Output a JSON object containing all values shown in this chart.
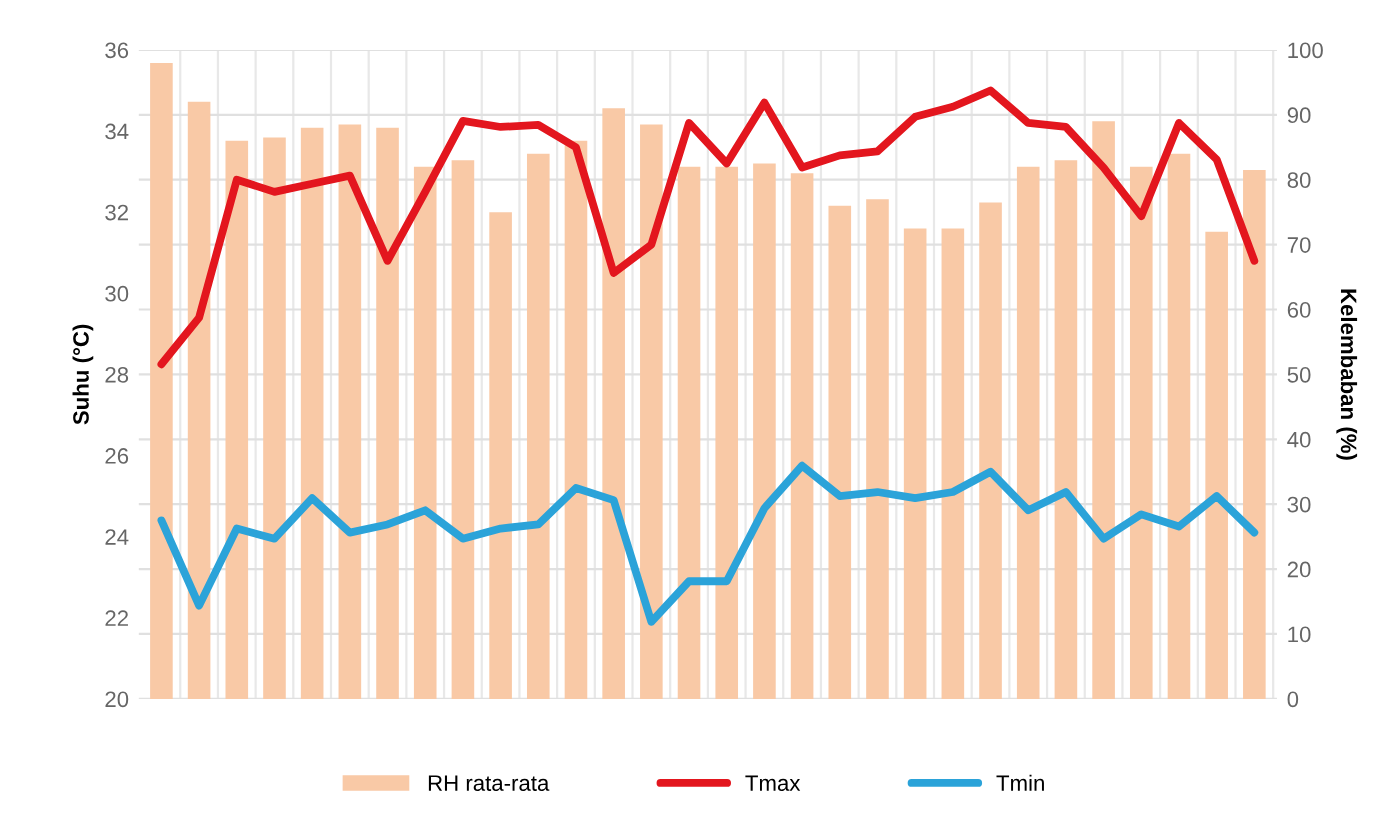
{
  "chart_data": {
    "type": "line",
    "ylabel": "Suhu (°C)",
    "y2label": "Kelembaban (%)",
    "categories": [
      null,
      null,
      null,
      null,
      null,
      null,
      null,
      null,
      null,
      null,
      null,
      null,
      null,
      null,
      null,
      null,
      null,
      null,
      null,
      null,
      null,
      null,
      null,
      null,
      null,
      null,
      null,
      null,
      null,
      null
    ],
    "series": [
      {
        "name": "RH rata-rata",
        "type": "bar",
        "axis": "y2",
        "color": "#f9c9a6",
        "values": [
          98,
          92,
          86,
          86.5,
          88,
          88.5,
          88,
          82,
          83,
          75,
          84,
          86,
          91,
          88.5,
          82,
          82,
          82.5,
          81,
          76,
          77,
          72.5,
          72.5,
          76.5,
          82,
          83,
          89,
          82,
          84,
          72,
          81.5
        ]
      },
      {
        "name": "Tmax",
        "color": "#e3161e",
        "values": [
          28.25,
          29.4,
          32.8,
          32.5,
          32.7,
          32.9,
          30.8,
          32.5,
          34.25,
          34.1,
          34.15,
          33.6,
          30.5,
          31.2,
          34.2,
          33.2,
          34.7,
          33.1,
          33.4,
          33.5,
          34.35,
          34.6,
          35.0,
          34.2,
          34.1,
          33.1,
          31.9,
          34.2,
          33.3,
          30.8
        ]
      },
      {
        "name": "Tmin",
        "color": "#2ba3d9",
        "values": [
          24.4,
          22.3,
          24.2,
          23.95,
          24.95,
          24.1,
          24.3,
          24.65,
          23.95,
          24.2,
          24.3,
          25.2,
          24.9,
          21.9,
          22.9,
          22.9,
          24.7,
          25.75,
          25.0,
          25.1,
          24.95,
          25.1,
          25.6,
          24.65,
          25.1,
          23.95,
          24.55,
          24.25,
          25.0,
          24.1
        ]
      }
    ],
    "ylim": [
      20,
      36
    ],
    "yticks": [
      20,
      22,
      24,
      26,
      28,
      30,
      32,
      34,
      36
    ],
    "y2lim": [
      0,
      100
    ],
    "y2ticks": [
      0,
      10,
      20,
      30,
      40,
      50,
      60,
      70,
      80,
      90,
      100
    ],
    "grid": true,
    "legend": "bottom",
    "line_style": "solid",
    "marker": "none"
  }
}
